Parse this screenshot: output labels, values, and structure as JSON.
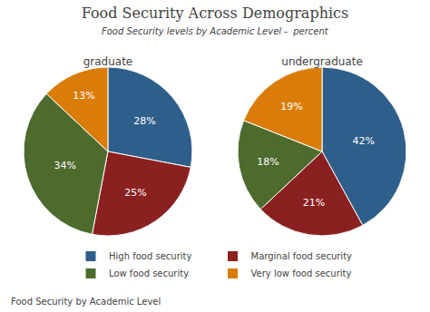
{
  "chart_data": {
    "type": "pie",
    "title": "Food Security Across Demographics",
    "subtitle": "Food Security levels by Academic Level -  percent",
    "footer": "Food Security by Academic Level",
    "categories": [
      "High food security",
      "Marginal food security",
      "Low food security",
      "Very low food security"
    ],
    "colors": [
      "#2d5f8a",
      "#8b2020",
      "#4e6b2e",
      "#d97c0a"
    ],
    "series": [
      {
        "name": "graduate",
        "values": [
          28,
          25,
          34,
          13
        ],
        "value_labels": [
          "28%",
          "25%",
          "34%",
          "13%"
        ]
      },
      {
        "name": "undergraduate",
        "values": [
          42,
          21,
          18,
          19
        ],
        "value_labels": [
          "42%",
          "21%",
          "18%",
          "19%"
        ]
      }
    ],
    "data_labels": true,
    "legend": "bottom"
  }
}
